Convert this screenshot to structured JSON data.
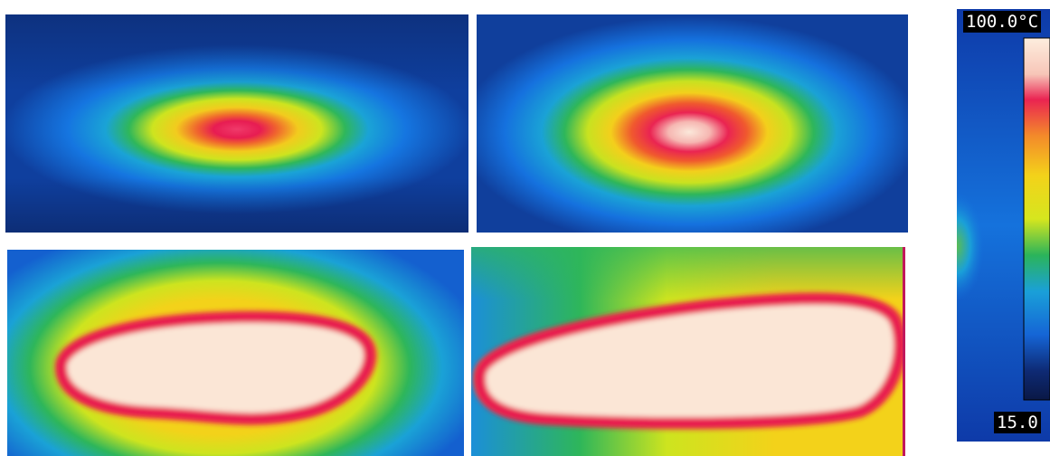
{
  "thermal_images": [
    {
      "id": "panel-1"
    },
    {
      "id": "panel-2"
    },
    {
      "id": "panel-3"
    },
    {
      "id": "panel-4"
    }
  ],
  "color_scale": {
    "max_label": "100.0°C",
    "min_label": "15.0",
    "stops": [
      "#fdeede",
      "#f7c6b8",
      "#ea2452",
      "#f38a2a",
      "#f3d21a",
      "#d6e61e",
      "#2bb45a",
      "#1aa0d8",
      "#1565d6",
      "#0e2a74",
      "#0a1846"
    ]
  }
}
